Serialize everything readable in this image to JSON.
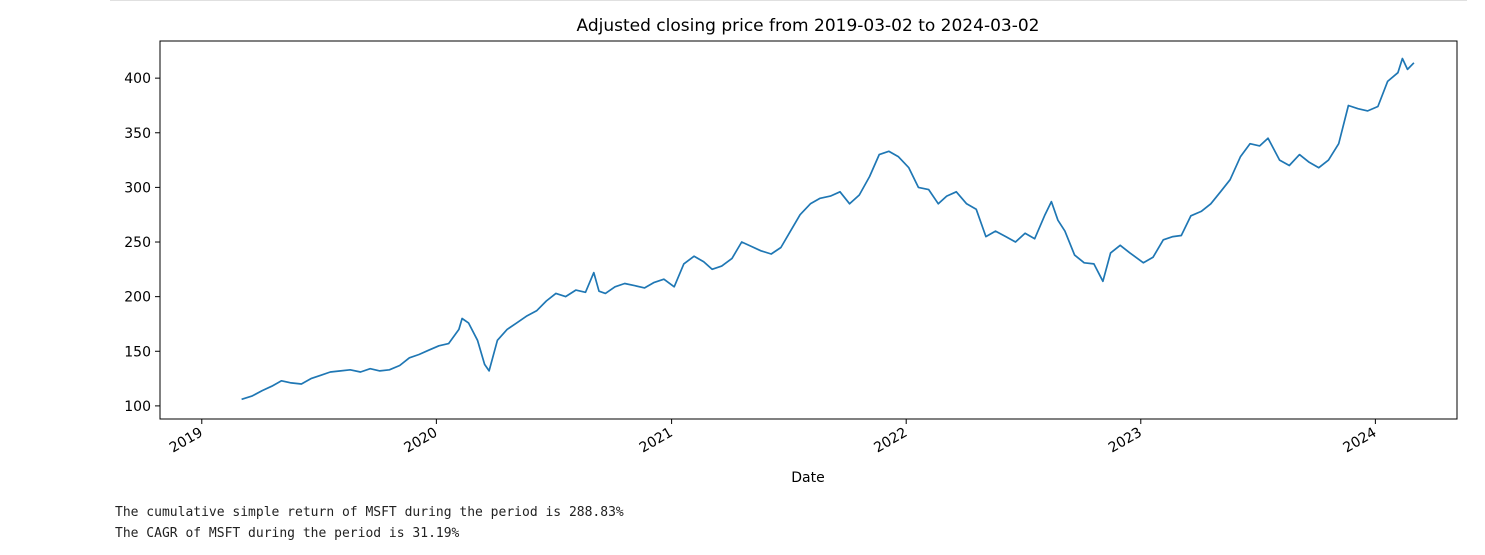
{
  "chart_data": {
    "type": "line",
    "title": "Adjusted closing price from 2019-03-02 to 2024-03-02",
    "xlabel": "Date",
    "ylabel": "",
    "xlim": [
      "2018-10-28",
      "2024-05-07"
    ],
    "ylim": [
      88,
      434
    ],
    "x_ticks": [
      "2019",
      "2020",
      "2021",
      "2022",
      "2023",
      "2024"
    ],
    "y_ticks": [
      100,
      150,
      200,
      250,
      300,
      350,
      400
    ],
    "grid": false,
    "color": "#1f77b4",
    "series": [
      {
        "x": [
          "2019-03-04",
          "2019-03-20",
          "2019-04-05",
          "2019-04-20",
          "2019-05-05",
          "2019-05-20",
          "2019-06-05",
          "2019-06-20",
          "2019-07-05",
          "2019-07-20",
          "2019-08-05",
          "2019-08-20",
          "2019-09-05",
          "2019-09-20",
          "2019-10-05",
          "2019-10-20",
          "2019-11-05",
          "2019-11-20",
          "2019-12-05",
          "2019-12-20",
          "2020-01-05",
          "2020-01-20",
          "2020-02-05",
          "2020-02-10",
          "2020-02-20",
          "2020-03-05",
          "2020-03-16",
          "2020-03-23",
          "2020-04-05",
          "2020-04-20",
          "2020-05-05",
          "2020-05-20",
          "2020-06-05",
          "2020-06-20",
          "2020-07-05",
          "2020-07-20",
          "2020-08-05",
          "2020-08-20",
          "2020-09-02",
          "2020-09-10",
          "2020-09-20",
          "2020-10-05",
          "2020-10-20",
          "2020-11-05",
          "2020-11-20",
          "2020-12-05",
          "2020-12-20",
          "2021-01-05",
          "2021-01-20",
          "2021-02-05",
          "2021-02-20",
          "2021-03-05",
          "2021-03-20",
          "2021-04-05",
          "2021-04-20",
          "2021-05-05",
          "2021-05-20",
          "2021-06-05",
          "2021-06-20",
          "2021-07-05",
          "2021-07-20",
          "2021-08-05",
          "2021-08-20",
          "2021-09-05",
          "2021-09-20",
          "2021-10-05",
          "2021-10-20",
          "2021-11-05",
          "2021-11-20",
          "2021-12-05",
          "2021-12-20",
          "2022-01-05",
          "2022-01-20",
          "2022-02-05",
          "2022-02-20",
          "2022-03-05",
          "2022-03-20",
          "2022-04-05",
          "2022-04-20",
          "2022-05-05",
          "2022-05-20",
          "2022-06-05",
          "2022-06-20",
          "2022-07-05",
          "2022-07-20",
          "2022-08-05",
          "2022-08-15",
          "2022-08-25",
          "2022-09-05",
          "2022-09-20",
          "2022-10-05",
          "2022-10-20",
          "2022-11-03",
          "2022-11-15",
          "2022-11-30",
          "2022-12-15",
          "2023-01-05",
          "2023-01-20",
          "2023-02-05",
          "2023-02-20",
          "2023-03-05",
          "2023-03-20",
          "2023-04-05",
          "2023-04-20",
          "2023-05-05",
          "2023-05-20",
          "2023-06-05",
          "2023-06-20",
          "2023-07-05",
          "2023-07-18",
          "2023-08-05",
          "2023-08-20",
          "2023-09-05",
          "2023-09-20",
          "2023-10-05",
          "2023-10-20",
          "2023-11-05",
          "2023-11-20",
          "2023-12-05",
          "2023-12-20",
          "2024-01-05",
          "2024-01-20",
          "2024-02-05",
          "2024-02-12",
          "2024-02-20",
          "2024-03-01"
        ],
        "y": [
          106,
          109,
          114,
          118,
          123,
          121,
          120,
          125,
          128,
          131,
          132,
          133,
          131,
          134,
          132,
          133,
          137,
          144,
          147,
          151,
          155,
          157,
          170,
          180,
          176,
          160,
          138,
          132,
          160,
          170,
          176,
          182,
          187,
          196,
          203,
          200,
          206,
          204,
          222,
          205,
          203,
          209,
          212,
          210,
          208,
          213,
          216,
          209,
          230,
          237,
          232,
          225,
          228,
          235,
          250,
          246,
          242,
          239,
          245,
          260,
          275,
          285,
          290,
          292,
          296,
          285,
          293,
          310,
          330,
          333,
          328,
          318,
          300,
          298,
          285,
          292,
          296,
          285,
          280,
          255,
          260,
          255,
          250,
          258,
          253,
          275,
          287,
          270,
          260,
          238,
          231,
          230,
          214,
          240,
          247,
          240,
          231,
          236,
          252,
          255,
          256,
          274,
          278,
          285,
          296,
          307,
          328,
          340,
          338,
          345,
          325,
          320,
          330,
          323,
          318,
          325,
          340,
          375,
          372,
          370,
          374,
          397,
          405,
          418,
          408,
          414
        ]
      }
    ]
  },
  "output": {
    "line1": "The cumulative simple return of MSFT during the period is 288.83%",
    "line2": "The CAGR of MSFT during the period is 31.19%"
  }
}
